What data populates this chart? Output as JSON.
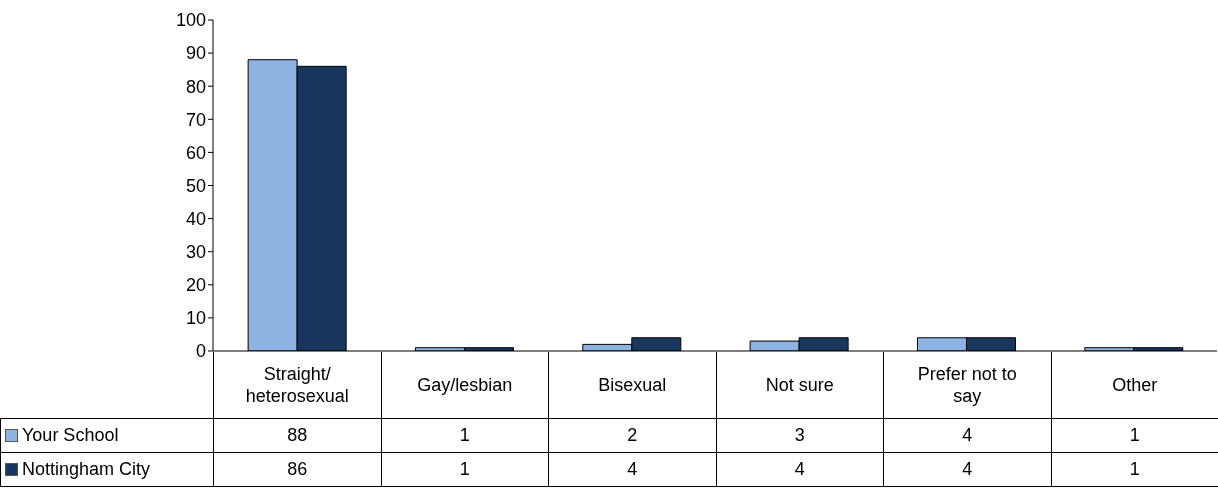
{
  "chart_data": {
    "type": "bar",
    "categories": [
      "Straight/ heterosexual",
      "Gay/lesbian",
      "Bisexual",
      "Not sure",
      "Prefer not to say",
      "Other"
    ],
    "series": [
      {
        "name": "Your School",
        "color": "#8db3e2",
        "values": [
          88,
          1,
          2,
          3,
          4,
          1
        ]
      },
      {
        "name": "Nottingham City",
        "color": "#17375e",
        "values": [
          86,
          1,
          4,
          4,
          4,
          1
        ]
      }
    ],
    "ylim": [
      0,
      100
    ],
    "yticks": [
      0,
      10,
      20,
      30,
      40,
      50,
      60,
      70,
      80,
      90,
      100
    ],
    "legend": "bottom",
    "data_labels": true
  }
}
